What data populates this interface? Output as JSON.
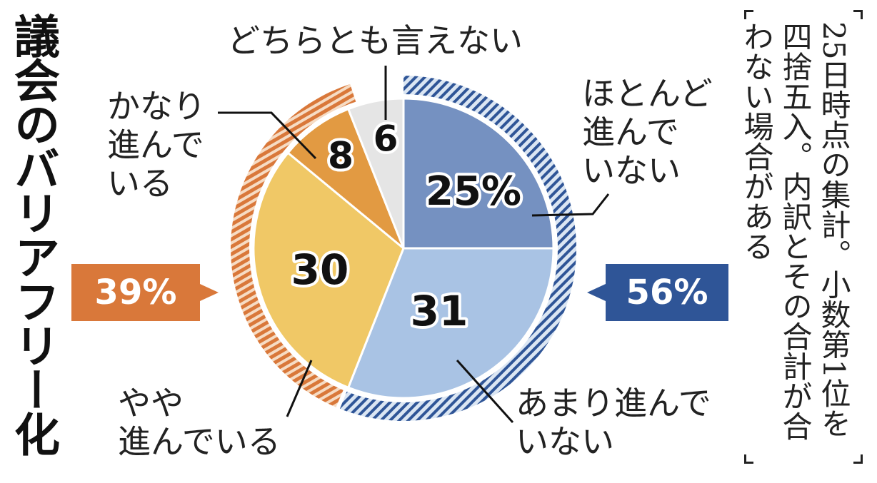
{
  "chart_data": {
    "type": "pie",
    "title": "議会のバリアフリー化",
    "slices": [
      {
        "label": "ほとんど進んでいない",
        "value": 25,
        "display": "25%",
        "color": "#7591c1"
      },
      {
        "label": "あまり進んでいない",
        "value": 31,
        "display": "31",
        "color": "#a9c3e4"
      },
      {
        "label": "やや進んでいる",
        "value": 30,
        "display": "30",
        "color": "#f0c866"
      },
      {
        "label": "かなり進んでいる",
        "value": 8,
        "display": "8",
        "color": "#e29a42"
      },
      {
        "label": "どちらとも言えない",
        "value": 6,
        "display": "6",
        "color": "#e5e5e5"
      }
    ],
    "groups": [
      {
        "display": "56%",
        "value": 56,
        "color": "#2f5597",
        "ring_color": "#2f5597"
      },
      {
        "display": "39%",
        "value": 39,
        "color": "#d9783a",
        "ring_color": "#d9783a"
      }
    ],
    "note": "25日時点の集計。小数第1位を四捨五入。内訳とその合計が合わない場合がある"
  },
  "labels": {
    "neither": "どちらとも言えない",
    "hardly": "ほとんど\n進んで\nいない",
    "fairly": "かなり\n進んで\nいる",
    "somewhat": "やや\n進んでいる",
    "not_much": "あまり進んで\nいない"
  }
}
